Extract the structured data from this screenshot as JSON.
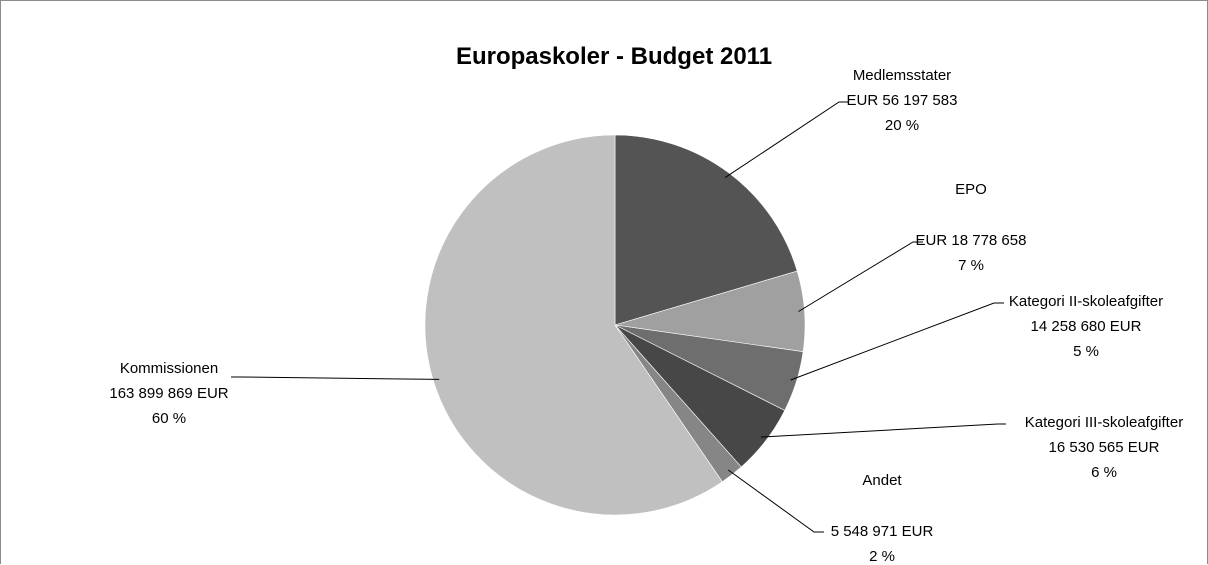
{
  "chart_data": {
    "type": "pie",
    "title": "Europaskoler - Budget 2011",
    "start_angle_deg": 0,
    "direction": "clockwise",
    "slices": [
      {
        "name": "Medlemsstater",
        "value": 56197583,
        "value_text": "EUR 56 197 583",
        "percent": 20,
        "percent_text": "20 %",
        "color": "#545454"
      },
      {
        "name": "EPO",
        "value": 18778658,
        "value_text": "EUR 18 778 658",
        "percent": 7,
        "percent_text": "7 %",
        "color": "#a0a0a0"
      },
      {
        "name": "Kategori II-skoleafgifter",
        "value": 14258680,
        "value_text": "14 258 680 EUR",
        "percent": 5,
        "percent_text": "5 %",
        "color": "#6e6e6e"
      },
      {
        "name": "Kategori III-skoleafgifter",
        "value": 16530565,
        "value_text": "16 530 565 EUR",
        "percent": 6,
        "percent_text": "6 %",
        "color": "#474747"
      },
      {
        "name": "Andet",
        "value": 5548971,
        "value_text": "5 548 971 EUR",
        "percent": 2,
        "percent_text": "2 %",
        "color": "#868686"
      },
      {
        "name": "Kommissionen",
        "value": 163899869,
        "value_text": "163 899 869  EUR",
        "percent": 60,
        "percent_text": "60 %",
        "color": "#c0c0c0"
      }
    ]
  }
}
